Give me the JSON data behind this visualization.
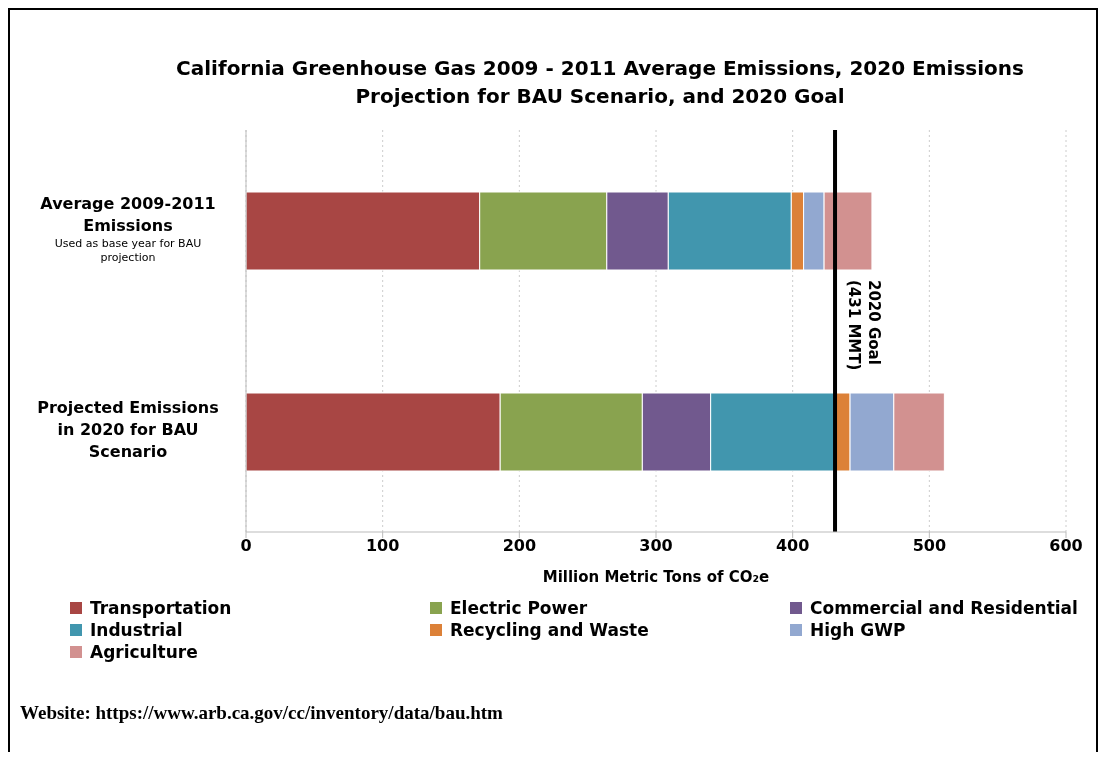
{
  "chart_data": {
    "type": "bar",
    "orientation": "horizontal",
    "stacked": true,
    "title": "California Greenhouse Gas 2009 - 2011 Average Emissions, 2020 Emissions Projection for BAU Scenario, and 2020 Goal",
    "xlabel": "Million Metric Tons of CO₂e",
    "categories": [
      "Average 2009-2011 Emissions",
      "Projected Emissions in 2020 for BAU Scenario"
    ],
    "series": [
      {
        "name": "Transportation",
        "color": "#a84644",
        "values": [
          171,
          186
        ]
      },
      {
        "name": "Electric Power",
        "color": "#89a34f",
        "values": [
          93,
          104
        ]
      },
      {
        "name": "Commercial and Residential",
        "color": "#71598e",
        "values": [
          45,
          50
        ]
      },
      {
        "name": "Industrial",
        "color": "#4196ae",
        "values": [
          90,
          92
        ]
      },
      {
        "name": "Recycling and Waste",
        "color": "#dc8138",
        "values": [
          9,
          10
        ]
      },
      {
        "name": "High GWP",
        "color": "#92a8d0",
        "values": [
          15,
          32
        ]
      },
      {
        "name": "Agriculture",
        "color": "#d29190",
        "values": [
          35,
          37
        ]
      }
    ],
    "xlim": [
      0,
      600
    ],
    "xticks": [
      0,
      100,
      200,
      300,
      400,
      500,
      600
    ],
    "grid": "x",
    "legend": "bottom",
    "ref_lines": [
      {
        "axis": "x",
        "value": 431,
        "label": "2020 Goal\n(431 MMT)",
        "color": "#000000"
      }
    ],
    "annotations": [
      "Used as base year for BAU projection",
      "Website: https://www.arb.ca.gov/cc/inventory/data/bau.htm"
    ]
  }
}
